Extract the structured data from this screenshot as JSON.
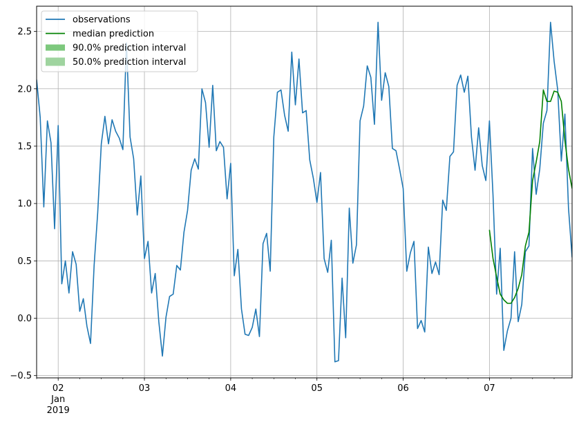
{
  "chart_data": {
    "type": "line",
    "xlim": [
      "2019-01-01T18:00",
      "2019-01-07T23:00"
    ],
    "ylim": [
      -0.52,
      2.72
    ],
    "grid": true,
    "legend_position": "top-left",
    "yticks": [
      {
        "value": -0.5,
        "label": "−0.5"
      },
      {
        "value": 0.0,
        "label": "0.0"
      },
      {
        "value": 0.5,
        "label": "0.5"
      },
      {
        "value": 1.0,
        "label": "1.0"
      },
      {
        "value": 1.5,
        "label": "1.5"
      },
      {
        "value": 2.0,
        "label": "2.0"
      },
      {
        "value": 2.5,
        "label": "2.5"
      }
    ],
    "xticks": [
      {
        "value": "2019-01-02T00:00",
        "label": "02",
        "sublabels": [
          "Jan",
          "2019"
        ]
      },
      {
        "value": "2019-01-03T00:00",
        "label": "03"
      },
      {
        "value": "2019-01-04T00:00",
        "label": "04"
      },
      {
        "value": "2019-01-05T00:00",
        "label": "05"
      },
      {
        "value": "2019-01-06T00:00",
        "label": "06"
      },
      {
        "value": "2019-01-07T00:00",
        "label": "07"
      }
    ],
    "legend": [
      {
        "label": "observations",
        "kind": "line",
        "color": "#1f77b4"
      },
      {
        "label": "median prediction",
        "kind": "line",
        "color": "#008000"
      },
      {
        "label": "90.0% prediction interval",
        "kind": "band",
        "color": "#7dc87d"
      },
      {
        "label": "50.0% prediction interval",
        "kind": "band",
        "color": "#9fd49f"
      }
    ],
    "series": [
      {
        "name": "observations",
        "color": "#1f77b4",
        "x_start": "2019-01-01T18:00",
        "step_hours": 1,
        "values": [
          2.08,
          1.75,
          0.97,
          1.72,
          1.53,
          0.78,
          1.68,
          0.3,
          0.5,
          0.22,
          0.58,
          0.47,
          0.06,
          0.17,
          -0.07,
          -0.22,
          0.46,
          0.92,
          1.52,
          1.76,
          1.52,
          1.73,
          1.63,
          1.57,
          1.47,
          2.4,
          1.58,
          1.39,
          0.9,
          1.24,
          0.52,
          0.67,
          0.22,
          0.39,
          -0.03,
          -0.33,
          0.01,
          0.19,
          0.21,
          0.46,
          0.42,
          0.75,
          0.94,
          1.29,
          1.39,
          1.3,
          2.0,
          1.88,
          1.49,
          2.03,
          1.46,
          1.54,
          1.49,
          1.04,
          1.35,
          0.37,
          0.6,
          0.08,
          -0.14,
          -0.15,
          -0.08,
          0.08,
          -0.16,
          0.65,
          0.74,
          0.41,
          1.58,
          1.97,
          1.99,
          1.77,
          1.63,
          2.32,
          1.86,
          2.26,
          1.79,
          1.81,
          1.38,
          1.22,
          1.01,
          1.27,
          0.52,
          0.4,
          0.68,
          -0.38,
          -0.37,
          0.35,
          -0.17,
          0.96,
          0.48,
          0.64,
          1.72,
          1.85,
          2.2,
          2.1,
          1.69,
          2.58,
          1.9,
          2.14,
          2.02,
          1.48,
          1.46,
          1.3,
          1.13,
          0.41,
          0.57,
          0.67,
          -0.09,
          -0.02,
          -0.12,
          0.62,
          0.39,
          0.49,
          0.38,
          1.03,
          0.94,
          1.41,
          1.45,
          2.03,
          2.12,
          1.97,
          2.11,
          1.58,
          1.29,
          1.66,
          1.33,
          1.2,
          1.72,
          1.07,
          0.21,
          0.61,
          -0.28,
          -0.11,
          0.0,
          0.58,
          -0.03,
          0.12,
          0.58,
          0.63,
          1.48,
          1.08,
          1.3,
          1.7,
          1.81,
          2.58,
          2.24,
          1.99,
          1.37,
          1.78,
          0.96,
          0.53
        ]
      },
      {
        "name": "median prediction",
        "color": "#008000",
        "x_start": "2019-01-07T00:00",
        "step_hours": 1,
        "values": [
          0.77,
          0.52,
          0.36,
          0.21,
          0.16,
          0.13,
          0.13,
          0.18,
          0.26,
          0.38,
          0.63,
          0.75,
          1.2,
          1.36,
          1.54,
          1.99,
          1.89,
          1.89,
          1.98,
          1.97,
          1.89,
          1.55,
          1.3,
          1.13
        ]
      }
    ]
  }
}
